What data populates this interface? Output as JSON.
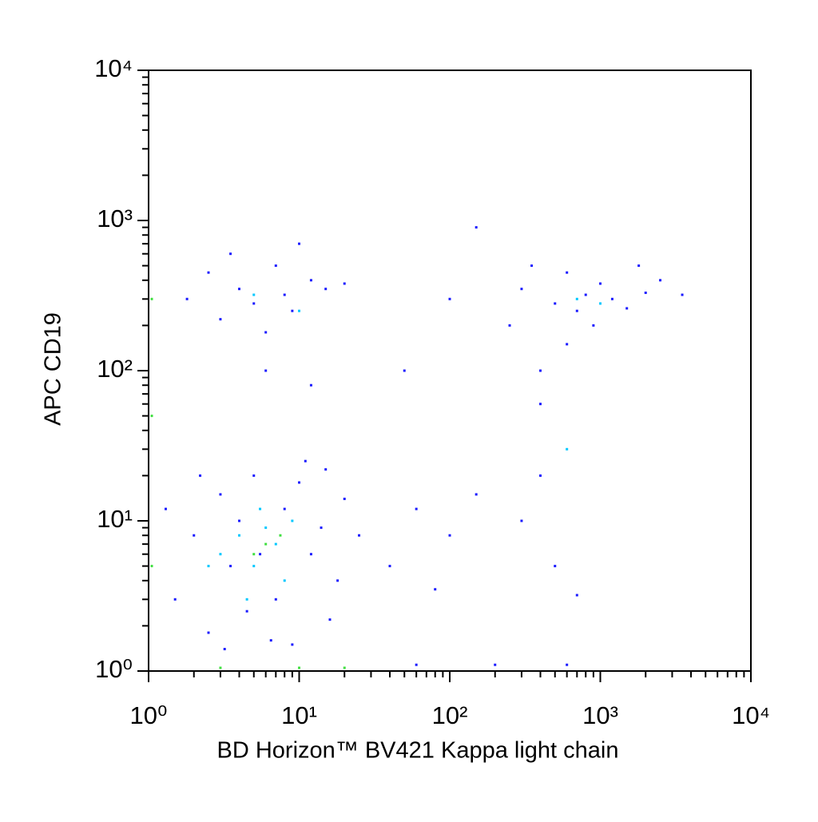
{
  "chart_data": {
    "type": "scatter",
    "x_label": "BD Horizon™ BV421 Kappa light chain",
    "y_label": "APC CD19",
    "xscale": "log",
    "yscale": "log",
    "xlim": [
      1,
      10000
    ],
    "ylim": [
      1,
      10000
    ],
    "xticks": [
      {
        "value": 1,
        "label": "10⁰"
      },
      {
        "value": 10,
        "label": "10¹"
      },
      {
        "value": 100,
        "label": "10²"
      },
      {
        "value": 1000,
        "label": "10³"
      },
      {
        "value": 10000,
        "label": "10⁴"
      }
    ],
    "yticks": [
      {
        "value": 1,
        "label": "10⁰"
      },
      {
        "value": 10,
        "label": "10¹"
      },
      {
        "value": 100,
        "label": "10²"
      },
      {
        "value": 1000,
        "label": "10³"
      },
      {
        "value": 10000,
        "label": "10⁴"
      }
    ],
    "xminorticks": [
      2,
      3,
      4,
      5,
      6,
      7,
      8,
      9,
      20,
      30,
      40,
      50,
      60,
      70,
      80,
      90,
      200,
      300,
      400,
      500,
      600,
      700,
      800,
      900,
      2000,
      3000,
      4000,
      5000,
      6000,
      7000,
      8000,
      9000
    ],
    "yminorticks": [
      2,
      3,
      4,
      5,
      6,
      7,
      8,
      9,
      20,
      30,
      40,
      50,
      60,
      70,
      80,
      90,
      200,
      300,
      400,
      500,
      600,
      700,
      800,
      900,
      2000,
      3000,
      4000,
      5000,
      6000,
      7000,
      8000,
      9000
    ],
    "series": [
      {
        "color": "#1a1aff",
        "x": [
          1.5,
          2,
          2.5,
          3,
          3.5,
          4,
          4.5,
          5,
          5.5,
          7,
          8,
          9,
          10,
          12,
          14,
          16,
          18,
          20,
          25,
          1.3,
          2.2,
          3.2,
          6.5,
          11,
          15,
          1.8,
          2.5,
          3,
          4,
          5,
          6,
          7,
          8,
          9,
          12,
          15,
          3.5,
          10,
          6,
          12,
          20,
          250,
          300,
          400,
          500,
          600,
          700,
          800,
          900,
          1000,
          1200,
          1500,
          2000,
          2500,
          3500,
          400,
          600,
          350,
          1800,
          40,
          60,
          80,
          100,
          150,
          300,
          400,
          500,
          700,
          50,
          100,
          150,
          60,
          200,
          600
        ],
        "y": [
          3,
          8,
          1.8,
          15,
          5,
          10,
          2.5,
          20,
          6,
          3,
          12,
          1.5,
          18,
          6,
          9,
          2.2,
          4,
          14,
          8,
          12,
          20,
          1.4,
          1.6,
          25,
          22,
          300,
          450,
          220,
          350,
          280,
          180,
          500,
          320,
          250,
          400,
          350,
          600,
          700,
          100,
          80,
          380,
          200,
          350,
          100,
          280,
          450,
          250,
          320,
          200,
          380,
          300,
          260,
          330,
          400,
          320,
          60,
          150,
          500,
          500,
          5,
          12,
          3.5,
          8,
          15,
          10,
          20,
          5,
          3.2,
          100,
          300,
          900,
          1.1,
          1.1,
          1.1
        ]
      },
      {
        "color": "#00c8ff",
        "x": [
          3,
          4,
          5,
          6,
          7,
          8,
          5.5,
          4.5,
          9,
          2.5,
          700,
          1000,
          5,
          10,
          600
        ],
        "y": [
          6,
          8,
          5,
          9,
          7,
          4,
          12,
          3,
          10,
          5,
          300,
          280,
          320,
          250,
          30
        ]
      },
      {
        "color": "#40e040",
        "x": [
          6,
          7.5,
          5,
          1.05,
          1.05,
          1.05,
          3,
          10,
          20
        ],
        "y": [
          7,
          8,
          6,
          5,
          50,
          300,
          1.05,
          1.05,
          1.05
        ]
      }
    ]
  }
}
